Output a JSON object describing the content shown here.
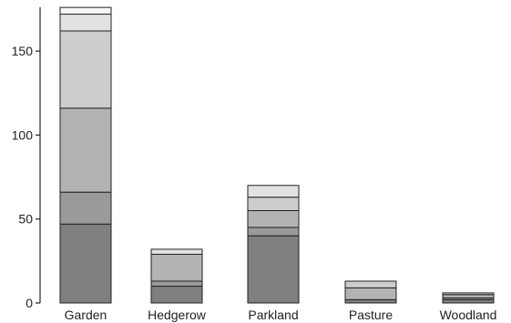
{
  "chart_data": {
    "type": "bar",
    "stacked": true,
    "title": "",
    "xlabel": "",
    "ylabel": "",
    "categories": [
      "Garden",
      "Hedgerow",
      "Parkland",
      "Pasture",
      "Woodland"
    ],
    "ylim": [
      0,
      175
    ],
    "yticks": [
      0,
      50,
      100,
      150
    ],
    "grid": false,
    "legend": "none",
    "series": [
      {
        "values": [
          47,
          10,
          40,
          2,
          2
        ],
        "color": "#7f7f7f"
      },
      {
        "values": [
          19,
          3,
          5,
          0,
          1
        ],
        "color": "#9a9a9a"
      },
      {
        "values": [
          50,
          16,
          10,
          7,
          2
        ],
        "color": "#b3b3b3"
      },
      {
        "values": [
          46,
          0,
          8,
          4,
          1
        ],
        "color": "#cdcdcd"
      },
      {
        "values": [
          10,
          3,
          7,
          0,
          0
        ],
        "color": "#e2e2e2"
      },
      {
        "values": [
          4,
          0,
          0,
          0,
          0
        ],
        "color": "#f6f6f6"
      }
    ]
  }
}
